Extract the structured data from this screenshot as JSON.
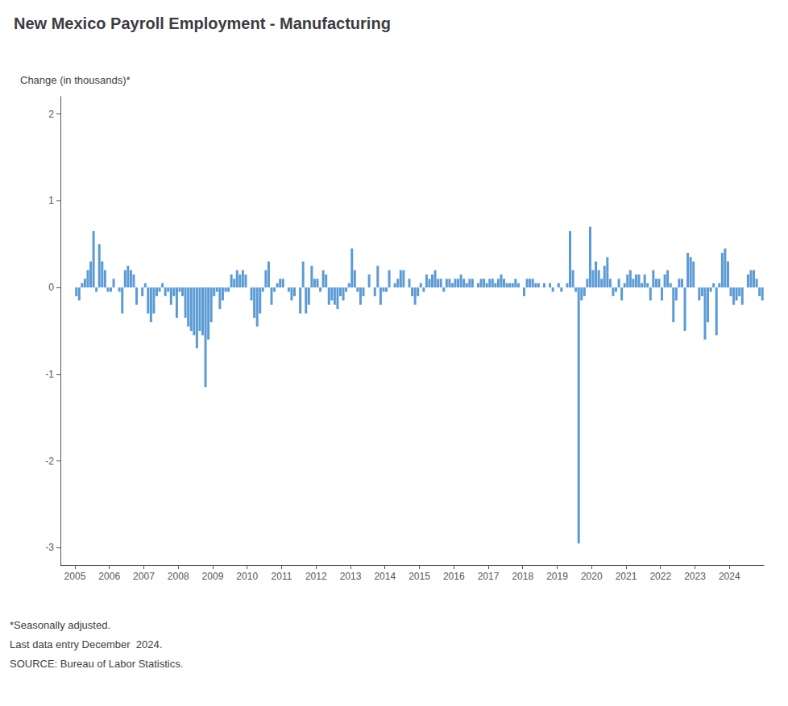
{
  "chart_data": {
    "type": "bar",
    "title": "New Mexico Payroll Employment - Manufacturing",
    "ylabel": "Change (in thousands)*",
    "annotations": [
      "*Seasonally adjusted.",
      "Last data entry December  2024.",
      "SOURCE: Bureau of Labor Statistics."
    ],
    "color": "#5B9BD5",
    "xlim": [
      2004.58,
      2025.0
    ],
    "xticks": [
      2005,
      2006,
      2007,
      2008,
      2009,
      2010,
      2011,
      2012,
      2013,
      2014,
      2015,
      2016,
      2017,
      2018,
      2019,
      2020,
      2021,
      2022,
      2023,
      2024
    ],
    "ylim": [
      -3.2,
      2.2
    ],
    "yticks": [
      -3,
      -2,
      -1,
      0,
      1,
      2
    ],
    "grid": false,
    "x": [
      2005.041667,
      2005.125,
      2005.208333,
      2005.291667,
      2005.375,
      2005.458333,
      2005.541667,
      2005.625,
      2005.708333,
      2005.791667,
      2005.875,
      2005.958333,
      2006.041667,
      2006.125,
      2006.208333,
      2006.291667,
      2006.375,
      2006.458333,
      2006.541667,
      2006.625,
      2006.708333,
      2006.791667,
      2006.875,
      2006.958333,
      2007.041667,
      2007.125,
      2007.208333,
      2007.291667,
      2007.375,
      2007.458333,
      2007.541667,
      2007.625,
      2007.708333,
      2007.791667,
      2007.875,
      2007.958333,
      2008.041667,
      2008.125,
      2008.208333,
      2008.291667,
      2008.375,
      2008.458333,
      2008.541667,
      2008.625,
      2008.708333,
      2008.791667,
      2008.875,
      2008.958333,
      2009.041667,
      2009.125,
      2009.208333,
      2009.291667,
      2009.375,
      2009.458333,
      2009.541667,
      2009.625,
      2009.708333,
      2009.791667,
      2009.875,
      2009.958333,
      2010.041667,
      2010.125,
      2010.208333,
      2010.291667,
      2010.375,
      2010.458333,
      2010.541667,
      2010.625,
      2010.708333,
      2010.791667,
      2010.875,
      2010.958333,
      2011.041667,
      2011.125,
      2011.208333,
      2011.291667,
      2011.375,
      2011.458333,
      2011.541667,
      2011.625,
      2011.708333,
      2011.791667,
      2011.875,
      2011.958333,
      2012.041667,
      2012.125,
      2012.208333,
      2012.291667,
      2012.375,
      2012.458333,
      2012.541667,
      2012.625,
      2012.708333,
      2012.791667,
      2012.875,
      2012.958333,
      2013.041667,
      2013.125,
      2013.208333,
      2013.291667,
      2013.375,
      2013.458333,
      2013.541667,
      2013.625,
      2013.708333,
      2013.791667,
      2013.875,
      2013.958333,
      2014.041667,
      2014.125,
      2014.208333,
      2014.291667,
      2014.375,
      2014.458333,
      2014.541667,
      2014.625,
      2014.708333,
      2014.791667,
      2014.875,
      2014.958333,
      2015.041667,
      2015.125,
      2015.208333,
      2015.291667,
      2015.375,
      2015.458333,
      2015.541667,
      2015.625,
      2015.708333,
      2015.791667,
      2015.875,
      2015.958333,
      2016.041667,
      2016.125,
      2016.208333,
      2016.291667,
      2016.375,
      2016.458333,
      2016.541667,
      2016.625,
      2016.708333,
      2016.791667,
      2016.875,
      2016.958333,
      2017.041667,
      2017.125,
      2017.208333,
      2017.291667,
      2017.375,
      2017.458333,
      2017.541667,
      2017.625,
      2017.708333,
      2017.791667,
      2017.875,
      2017.958333,
      2018.041667,
      2018.125,
      2018.208333,
      2018.291667,
      2018.375,
      2018.458333,
      2018.541667,
      2018.625,
      2018.708333,
      2018.791667,
      2018.875,
      2018.958333,
      2019.041667,
      2019.125,
      2019.208333,
      2019.291667,
      2019.375,
      2019.458333,
      2019.541667,
      2019.625,
      2019.708333,
      2019.791667,
      2019.875,
      2019.958333,
      2020.041667,
      2020.125,
      2020.208333,
      2020.291667,
      2020.375,
      2020.458333,
      2020.541667,
      2020.625,
      2020.708333,
      2020.791667,
      2020.875,
      2020.958333,
      2021.041667,
      2021.125,
      2021.208333,
      2021.291667,
      2021.375,
      2021.458333,
      2021.541667,
      2021.625,
      2021.708333,
      2021.791667,
      2021.875,
      2021.958333,
      2022.041667,
      2022.125,
      2022.208333,
      2022.291667,
      2022.375,
      2022.458333,
      2022.541667,
      2022.625,
      2022.708333,
      2022.791667,
      2022.875,
      2022.958333,
      2023.041667,
      2023.125,
      2023.208333,
      2023.291667,
      2023.375,
      2023.458333,
      2023.541667,
      2023.625,
      2023.708333,
      2023.791667,
      2023.875,
      2023.958333,
      2024.041667,
      2024.125,
      2024.208333,
      2024.291667,
      2024.375,
      2024.458333,
      2024.541667,
      2024.625,
      2024.708333,
      2024.791667,
      2024.875,
      2024.958333
    ],
    "values": [
      -0.1,
      -0.15,
      0.05,
      0.1,
      0.2,
      0.3,
      0.65,
      -0.05,
      0.5,
      0.3,
      0.2,
      -0.05,
      -0.05,
      0.1,
      0.0,
      -0.05,
      -0.3,
      0.2,
      0.25,
      0.2,
      0.15,
      -0.2,
      0.0,
      -0.1,
      0.05,
      -0.3,
      -0.4,
      -0.3,
      -0.1,
      -0.05,
      0.05,
      -0.1,
      -0.05,
      -0.2,
      -0.1,
      -0.35,
      -0.05,
      -0.1,
      -0.35,
      -0.45,
      -0.5,
      -0.55,
      -0.7,
      -0.5,
      -0.55,
      -1.15,
      -0.6,
      -0.4,
      -0.1,
      -0.05,
      -0.25,
      -0.15,
      -0.05,
      -0.05,
      0.15,
      0.1,
      0.2,
      0.15,
      0.2,
      0.15,
      0.0,
      -0.15,
      -0.35,
      -0.45,
      -0.3,
      -0.05,
      0.2,
      0.3,
      -0.2,
      -0.05,
      0.05,
      0.1,
      0.1,
      0.0,
      -0.05,
      -0.15,
      -0.1,
      0.0,
      -0.3,
      0.3,
      -0.3,
      -0.2,
      0.25,
      0.1,
      0.1,
      -0.05,
      0.2,
      0.15,
      -0.2,
      -0.15,
      -0.2,
      -0.25,
      -0.1,
      -0.15,
      -0.05,
      0.05,
      0.45,
      0.2,
      -0.05,
      -0.2,
      -0.1,
      0.0,
      0.15,
      0.0,
      -0.1,
      0.25,
      -0.2,
      -0.05,
      -0.05,
      0.2,
      0.0,
      0.05,
      0.1,
      0.2,
      0.2,
      0.0,
      0.1,
      -0.1,
      -0.2,
      -0.1,
      0.05,
      -0.05,
      0.15,
      0.1,
      0.15,
      0.2,
      0.1,
      0.1,
      -0.05,
      0.1,
      0.1,
      0.05,
      0.1,
      0.1,
      0.15,
      0.1,
      0.05,
      0.1,
      0.1,
      0.0,
      0.05,
      0.1,
      0.1,
      0.05,
      0.1,
      0.1,
      0.05,
      0.1,
      0.15,
      0.1,
      0.05,
      0.05,
      0.05,
      0.1,
      0.05,
      0.0,
      -0.1,
      0.1,
      0.1,
      0.1,
      0.05,
      0.05,
      0.0,
      0.05,
      0.0,
      0.05,
      -0.05,
      0.0,
      0.05,
      -0.05,
      0.0,
      0.05,
      0.65,
      0.2,
      -0.05,
      -2.95,
      -0.15,
      -0.1,
      0.1,
      0.7,
      0.2,
      0.3,
      0.2,
      0.1,
      0.25,
      0.35,
      0.1,
      -0.1,
      -0.05,
      0.1,
      -0.15,
      0.05,
      0.15,
      0.2,
      0.1,
      0.15,
      0.15,
      0.05,
      0.15,
      0.05,
      -0.15,
      0.2,
      0.1,
      0.1,
      -0.15,
      0.15,
      0.2,
      0.05,
      -0.4,
      -0.15,
      0.1,
      0.1,
      -0.5,
      0.4,
      0.35,
      0.3,
      0.0,
      -0.15,
      -0.1,
      -0.6,
      -0.4,
      -0.05,
      0.05,
      -0.55,
      0.05,
      0.4,
      0.45,
      0.3,
      -0.1,
      -0.2,
      -0.15,
      -0.1,
      -0.2,
      0.0,
      0.15,
      0.2,
      0.2,
      0.1,
      -0.1,
      -0.15
    ]
  }
}
